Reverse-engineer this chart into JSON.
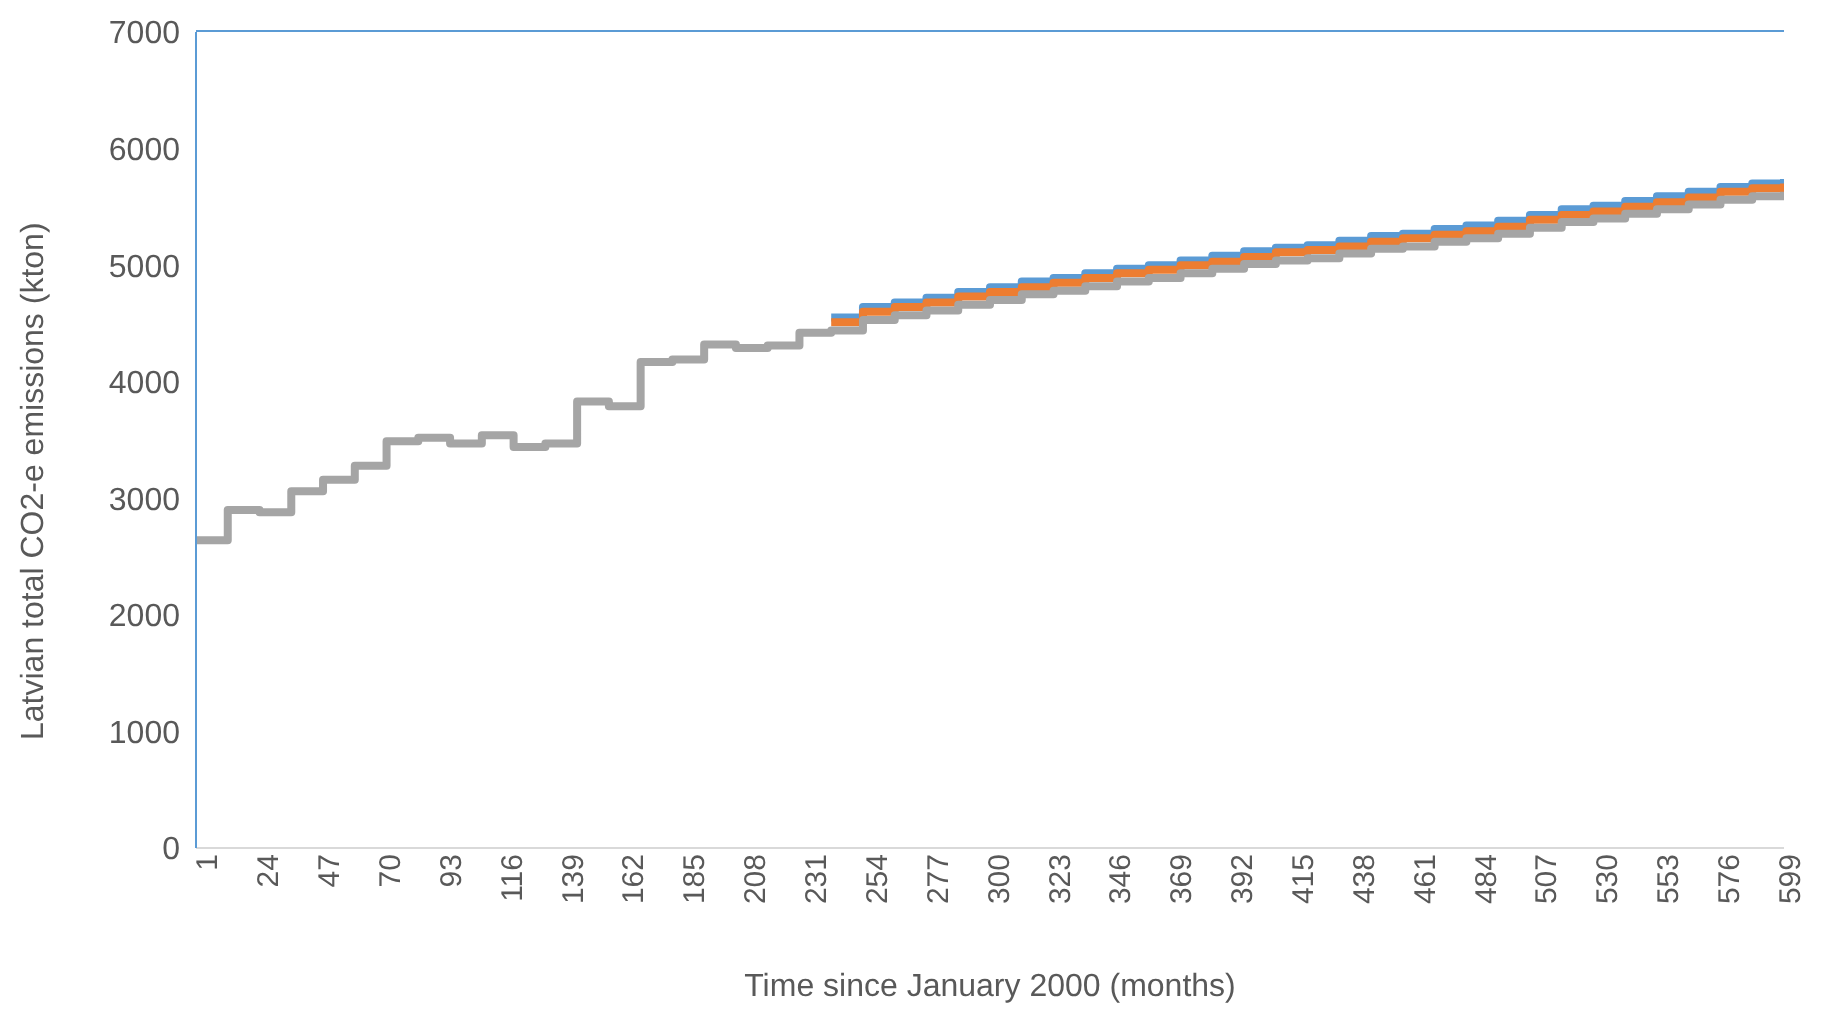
{
  "chart_data": {
    "type": "step",
    "xlabel": "Time since January 2000 (months)",
    "ylabel": "Latvian total CO2-e emissions (kton)",
    "x": [
      1,
      13,
      25,
      37,
      49,
      61,
      73,
      85,
      97,
      109,
      121,
      133,
      145,
      157,
      169,
      181,
      193,
      205,
      217,
      229,
      241,
      253,
      265,
      277,
      289,
      301,
      313,
      325,
      337,
      349,
      361,
      373,
      385,
      397,
      409,
      421,
      433,
      445,
      457,
      469,
      481,
      493,
      505,
      517,
      529,
      541,
      553,
      565,
      577,
      589,
      601
    ],
    "xlim": [
      1,
      601
    ],
    "xticks": [
      1,
      24,
      47,
      70,
      93,
      116,
      139,
      162,
      185,
      208,
      231,
      254,
      277,
      300,
      323,
      346,
      369,
      392,
      415,
      438,
      461,
      484,
      507,
      530,
      553,
      576,
      599
    ],
    "ylim": [
      0,
      7000
    ],
    "yticks": [
      0,
      1000,
      2000,
      3000,
      4000,
      5000,
      6000,
      7000
    ],
    "grid": false,
    "legend": false,
    "series": [
      {
        "color": "#5b9bd5",
        "values": [
          null,
          null,
          null,
          null,
          null,
          null,
          null,
          null,
          null,
          null,
          null,
          null,
          null,
          null,
          null,
          null,
          null,
          null,
          null,
          null,
          4550,
          4640,
          4680,
          4720,
          4770,
          4810,
          4860,
          4890,
          4930,
          4970,
          5000,
          5040,
          5080,
          5120,
          5150,
          5170,
          5210,
          5250,
          5270,
          5310,
          5340,
          5380,
          5430,
          5480,
          5510,
          5550,
          5590,
          5630,
          5670,
          5700,
          5740
        ]
      },
      {
        "color": "#ed7d31",
        "values": [
          null,
          null,
          null,
          null,
          null,
          null,
          null,
          null,
          null,
          null,
          null,
          null,
          null,
          null,
          null,
          null,
          null,
          null,
          null,
          null,
          4510,
          4600,
          4640,
          4680,
          4730,
          4770,
          4810,
          4850,
          4890,
          4930,
          4960,
          5000,
          5030,
          5070,
          5110,
          5130,
          5160,
          5200,
          5230,
          5260,
          5290,
          5330,
          5390,
          5430,
          5460,
          5500,
          5540,
          5580,
          5630,
          5660,
          5700
        ]
      },
      {
        "color": "#a5a5a5",
        "values": [
          2640,
          2900,
          2880,
          3060,
          3160,
          3280,
          3490,
          3520,
          3470,
          3540,
          3440,
          3470,
          3830,
          3790,
          4170,
          4190,
          4320,
          4290,
          4310,
          4420,
          4440,
          4530,
          4570,
          4610,
          4660,
          4700,
          4750,
          4780,
          4820,
          4860,
          4890,
          4930,
          4970,
          5010,
          5040,
          5060,
          5100,
          5140,
          5160,
          5200,
          5230,
          5270,
          5320,
          5370,
          5400,
          5440,
          5480,
          5520,
          5560,
          5590,
          5630
        ]
      }
    ]
  }
}
